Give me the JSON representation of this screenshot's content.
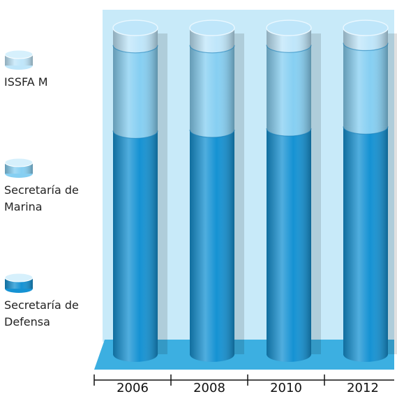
{
  "chart_data": {
    "type": "stacked-cylinder",
    "categories": [
      "2006",
      "2008",
      "2010",
      "2012"
    ],
    "series": [
      {
        "name": "Secretaría de Defensa",
        "color": "#1592d3",
        "values": [
          68.5,
          68.8,
          69.2,
          69.8
        ]
      },
      {
        "name": "Secretaría de Marina",
        "color": "#86cff2",
        "values": [
          26.2,
          25.9,
          25.6,
          25.6
        ]
      },
      {
        "name": "ISSFA M",
        "color": "#bfe6fa",
        "values": [
          5.3,
          5.3,
          5.2,
          4.6
        ]
      }
    ],
    "ylim": [
      0,
      100
    ]
  }
}
